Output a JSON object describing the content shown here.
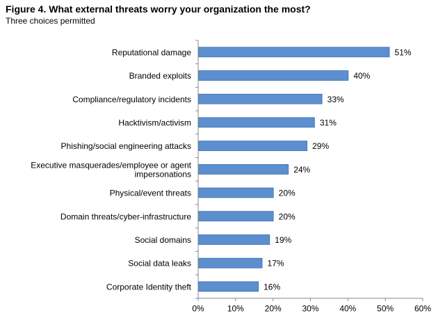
{
  "chart_data": {
    "type": "bar",
    "orientation": "horizontal",
    "title": "Figure 4. What external threats worry your organization the most?",
    "subtitle": "Three choices permitted",
    "categories": [
      "Reputational damage",
      "Branded exploits",
      "Compliance/regulatory incidents",
      "Hacktivism/activism",
      "Phishing/social engineering attacks",
      "Executive masquerades/employee or agent impersonations",
      "Physical/event threats",
      "Domain threats/cyber-infrastructure",
      "Social domains",
      "Social data leaks",
      "Corporate Identity theft"
    ],
    "category_label_lines": [
      [
        "Reputational damage"
      ],
      [
        "Branded exploits"
      ],
      [
        "Compliance/regulatory incidents"
      ],
      [
        "Hacktivism/activism"
      ],
      [
        "Phishing/social engineering attacks"
      ],
      [
        "Executive masquerades/employee or agent",
        "impersonations"
      ],
      [
        "Physical/event threats"
      ],
      [
        "Domain threats/cyber-infrastructure"
      ],
      [
        "Social domains"
      ],
      [
        "Social data leaks"
      ],
      [
        "Corporate Identity theft"
      ]
    ],
    "values": [
      51,
      40,
      33,
      31,
      29,
      24,
      20,
      20,
      19,
      17,
      16
    ],
    "value_labels": [
      "51%",
      "40%",
      "33%",
      "31%",
      "29%",
      "24%",
      "20%",
      "20%",
      "19%",
      "17%",
      "16%"
    ],
    "xlim": [
      0,
      60
    ],
    "xticks": [
      0,
      10,
      20,
      30,
      40,
      50,
      60
    ],
    "xtick_labels": [
      "0%",
      "10%",
      "20%",
      "30%",
      "40%",
      "50%",
      "60%"
    ],
    "xlabel": "",
    "ylabel": "",
    "grid": false,
    "legend": "none",
    "colors": {
      "bar_fill": "#5b8fcf",
      "bar_stroke": "#3f6ea8",
      "axis": "#888888",
      "text": "#000000"
    }
  }
}
